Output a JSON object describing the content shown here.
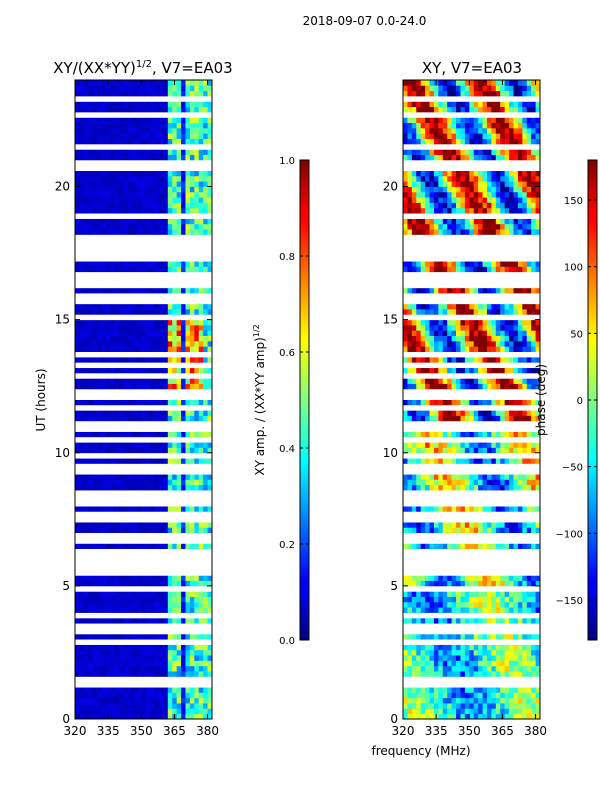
{
  "figure": {
    "suptitle": "2018-09-07 0.0-24.0"
  },
  "chart_data": [
    {
      "type": "heatmap",
      "title": "XY/(XX*YY)1/2, V7=EA03",
      "title_base": "XY/(XX*YY)",
      "title_sup": "1/2",
      "title_rest": ", V7=EA03",
      "xlabel": "",
      "ylabel": "UT (hours)",
      "xlim": [
        320,
        382
      ],
      "ylim": [
        0,
        24
      ],
      "xticks": [
        "320",
        "335",
        "350",
        "365",
        "380"
      ],
      "xtick_values": [
        320,
        335,
        350,
        365,
        380
      ],
      "yticks": [
        "0",
        "5",
        "10",
        "15",
        "20"
      ],
      "ytick_values": [
        0,
        5,
        10,
        15,
        20
      ],
      "colormap": "jet",
      "colorbar": {
        "label": "XY amp. / (XX*YY amp)1/2",
        "label_base": "XY amp. / (XX*YY amp)",
        "label_sup": "1/2",
        "range": [
          0,
          1
        ],
        "ticks": [
          "0.0",
          "0.2",
          "0.4",
          "0.6",
          "0.8",
          "1.0"
        ],
        "tick_values": [
          0,
          0.2,
          0.4,
          0.6,
          0.8,
          1.0
        ]
      }
    },
    {
      "type": "heatmap",
      "title": "XY, V7=EA03",
      "xlabel": "frequency (MHz)",
      "ylabel": "",
      "xlim": [
        320,
        382
      ],
      "ylim": [
        0,
        24
      ],
      "xticks": [
        "320",
        "335",
        "350",
        "365",
        "380"
      ],
      "xtick_values": [
        320,
        335,
        350,
        365,
        380
      ],
      "yticks": [
        "0",
        "5",
        "10",
        "15",
        "20"
      ],
      "ytick_values": [
        0,
        5,
        10,
        15,
        20
      ],
      "colormap": "jet",
      "colorbar": {
        "label": "phase (deg)",
        "range": [
          -180,
          180
        ],
        "ticks": [
          "−150",
          "−100",
          "−50",
          "0",
          "50",
          "100",
          "150"
        ],
        "tick_values": [
          -150,
          -100,
          -50,
          0,
          50,
          100,
          150
        ]
      }
    }
  ],
  "flagged_gaps_ut_hours": [
    0.2,
    1.3,
    1.45,
    2.0,
    2.4,
    2.9,
    3.2,
    3.35,
    3.5,
    3.9,
    4.6,
    4.85,
    5.5,
    5.7,
    5.95,
    6.05,
    6.3,
    6.7,
    6.9,
    7.2,
    7.4,
    7.55,
    7.75,
    8.0,
    8.1,
    8.3,
    8.45,
    8.6,
    8.8,
    9.0,
    9.25,
    9.5,
    9.85,
    10.5,
    10.9,
    11.05,
    11.4,
    11.7,
    12.1,
    12.35,
    12.6,
    12.9,
    13.2,
    13.35,
    13.75,
    14.6,
    15.1,
    15.7,
    15.95,
    16.3,
    16.55,
    16.7,
    17.0,
    17.25,
    17.5,
    17.75,
    17.9,
    18.05,
    18.2,
    18.9,
    19.2,
    19.6,
    20.4,
    20.65,
    20.8,
    20.95,
    21.5,
    22.6,
    22.7,
    23.3,
    23.35
  ]
}
